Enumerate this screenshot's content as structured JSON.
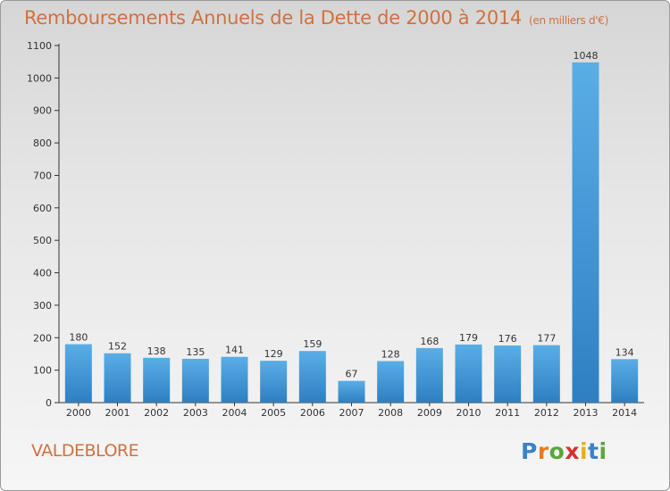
{
  "chart_data": {
    "type": "bar",
    "title": "Remboursements Annuels de la Dette de 2000 à 2014",
    "subtitle": "(en milliers d'€)",
    "xlabel": "",
    "ylabel": "",
    "categories": [
      "2000",
      "2001",
      "2002",
      "2003",
      "2004",
      "2005",
      "2006",
      "2007",
      "2008",
      "2009",
      "2010",
      "2011",
      "2012",
      "2013",
      "2014"
    ],
    "values": [
      180,
      152,
      138,
      135,
      141,
      129,
      159,
      67,
      128,
      168,
      179,
      176,
      177,
      1048,
      134
    ],
    "ylim": [
      0,
      1100
    ],
    "yticks": [
      0,
      100,
      200,
      300,
      400,
      500,
      600,
      700,
      800,
      900,
      1000,
      1100
    ],
    "grid": false,
    "bar_color_top": "#5aaee6",
    "bar_color_bottom": "#2e7fc2"
  },
  "footer": {
    "commune": "VALDEBLORE",
    "logo_text": "Proxiti"
  },
  "colors": {
    "title": "#d1713f",
    "axis": "#333333"
  }
}
